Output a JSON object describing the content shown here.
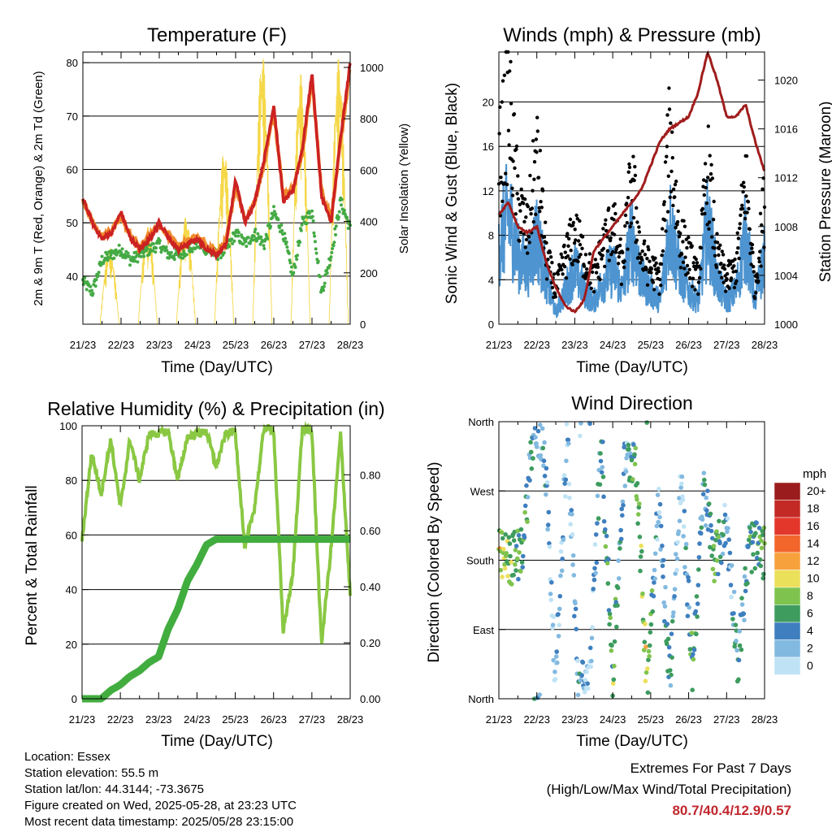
{
  "colors": {
    "temp_red": "#cc2222",
    "temp_orange": "#f08a2c",
    "dewpoint_green": "#44aa44",
    "solar_yellow": "#f5d84a",
    "wind_blue": "#4d94d0",
    "gust_black": "#000000",
    "pressure_maroon": "#a01c1c",
    "rh_lightgreen": "#8ac843",
    "precip_green": "#42ad3f",
    "extremes_red": "#c0272d"
  },
  "time_ticks": [
    "21/23",
    "22/23",
    "23/23",
    "24/23",
    "25/23",
    "26/23",
    "27/23",
    "28/23"
  ],
  "charts": [
    {
      "id": "temperature",
      "title": "Temperature (F)",
      "xlabel": "Time (Day/UTC)",
      "ylabel_left": "2m & 9m T (Red, Orange) & 2m Td (Green)",
      "ylabel_right": "Solar Insolation (Yellow)",
      "left_ticks": [
        "40",
        "50",
        "60",
        "70",
        "80"
      ],
      "right_ticks": [
        "0",
        "200",
        "400",
        "600",
        "800",
        "1000"
      ]
    },
    {
      "id": "winds",
      "title": "Winds (mph) & Pressure (mb)",
      "xlabel": "Time (Day/UTC)",
      "ylabel_left": "Sonic Wind & Gust (Blue, Black)",
      "ylabel_right": "Station Pressure (Maroon)",
      "left_ticks": [
        "0",
        "4",
        "8",
        "12",
        "16",
        "20"
      ],
      "right_ticks": [
        "1000",
        "1004",
        "1008",
        "1012",
        "1016",
        "1020"
      ]
    },
    {
      "id": "humidity",
      "title": "Relative Humidity (%) & Precipitation (in)",
      "xlabel": "Time (Day/UTC)",
      "ylabel_left": "Percent & Total Rainfall",
      "ylabel_right": "",
      "left_ticks": [
        "0",
        "20",
        "40",
        "60",
        "80",
        "100"
      ],
      "right_ticks": [
        "0.00",
        "0.20",
        "0.40",
        "0.60",
        "0.80"
      ]
    },
    {
      "id": "direction",
      "title": "Wind Direction",
      "xlabel": "Time (Day/UTC)",
      "ylabel_left": "Direction (Colored By Speed)",
      "ylabel_right": "",
      "left_ticks": [
        "North",
        "East",
        "South",
        "West",
        "North"
      ],
      "right_ticks": []
    }
  ],
  "legend": {
    "title": "mph",
    "labels": [
      "20+",
      "18",
      "16",
      "14",
      "12",
      "10",
      "8",
      "6",
      "4",
      "2",
      "0"
    ],
    "colors": [
      "#9b1c1c",
      "#c42a25",
      "#e3372c",
      "#f2662c",
      "#f7a13c",
      "#ebe05a",
      "#7fc34f",
      "#3d9c5e",
      "#3f7fbf",
      "#82b9e0",
      "#bfe3f5"
    ]
  },
  "chart_data": [
    {
      "type": "line",
      "title": "Temperature (F)",
      "xlabel": "Time (Day/UTC)",
      "ylabel": "2m & 9m T (Red, Orange) & 2m Td (Green)",
      "y2label": "Solar Insolation (Yellow)",
      "x_unit": "day index from 21/23",
      "ylim": [
        31,
        82
      ],
      "y2lim": [
        0,
        1060
      ],
      "x": [
        0,
        0.25,
        0.5,
        0.75,
        1,
        1.25,
        1.5,
        1.75,
        2,
        2.25,
        2.5,
        2.75,
        3,
        3.25,
        3.5,
        3.75,
        4,
        4.25,
        4.5,
        4.75,
        5,
        5.25,
        5.5,
        5.75,
        6,
        6.25,
        6.5,
        6.75,
        7
      ],
      "series": [
        {
          "name": "2m T",
          "axis": "left",
          "values": [
            54.5,
            50,
            47,
            48,
            52,
            47,
            45,
            47,
            50,
            47,
            45,
            46,
            47,
            45,
            44,
            46,
            58,
            50,
            54,
            62,
            72,
            54,
            56,
            64,
            78,
            55,
            50,
            66,
            80
          ]
        },
        {
          "name": "9m T",
          "axis": "left",
          "values": [
            54,
            50,
            47.5,
            48.5,
            51.5,
            47.5,
            45.5,
            47.5,
            49.5,
            47.5,
            45.5,
            46.5,
            47.5,
            45.5,
            44.5,
            46.5,
            57,
            50.5,
            54,
            61,
            71,
            55,
            56.5,
            63,
            77,
            56,
            51,
            65,
            79
          ]
        },
        {
          "name": "2m Td",
          "axis": "left",
          "values": [
            39,
            37,
            43,
            44,
            45,
            43,
            44,
            45,
            46,
            44,
            44,
            45,
            46,
            45,
            44,
            45,
            48,
            46,
            48,
            46,
            52,
            48,
            40,
            50,
            52,
            37,
            44,
            54,
            49
          ]
        },
        {
          "name": "Solar Insolation",
          "axis": "right",
          "values": [
            0,
            0,
            300,
            120,
            0,
            0,
            380,
            100,
            0,
            0,
            420,
            200,
            0,
            0,
            680,
            150,
            0,
            0,
            1060,
            400,
            0,
            0,
            980,
            300,
            0,
            0,
            1040,
            500,
            0
          ]
        }
      ]
    },
    {
      "type": "line",
      "title": "Winds (mph) & Pressure (mb)",
      "xlabel": "Time (Day/UTC)",
      "ylabel": "Sonic Wind & Gust (Blue, Black)",
      "y2label": "Station Pressure (Maroon)",
      "x_unit": "day index from 21/23",
      "ylim": [
        0,
        24.5
      ],
      "y2lim": [
        1000,
        1022.3
      ],
      "x": [
        0,
        0.25,
        0.5,
        0.75,
        1,
        1.25,
        1.5,
        1.75,
        2,
        2.25,
        2.5,
        2.75,
        3,
        3.25,
        3.5,
        3.75,
        4,
        4.25,
        4.5,
        4.75,
        5,
        5.25,
        5.5,
        5.75,
        6,
        6.25,
        6.5,
        6.75,
        7
      ],
      "series": [
        {
          "name": "Sonic Wind",
          "axis": "left",
          "values": [
            7,
            10,
            6,
            5,
            8,
            4,
            1,
            3,
            5,
            3,
            2,
            4,
            5,
            3,
            8,
            4,
            3,
            2,
            9,
            5,
            3,
            2,
            9,
            4,
            2,
            3,
            8,
            2,
            6
          ]
        },
        {
          "name": "Gust",
          "axis": "left",
          "values": [
            14,
            20,
            11,
            8,
            15,
            6,
            3,
            6,
            8,
            6,
            4,
            7,
            9,
            5,
            13,
            6,
            5,
            4,
            17,
            8,
            6,
            4,
            14,
            6,
            4,
            5,
            13,
            3,
            11
          ]
        },
        {
          "name": "Station Pressure",
          "axis": "right",
          "values": [
            1009,
            1010,
            1008,
            1007.5,
            1008,
            1005,
            1003,
            1001.5,
            1001,
            1002,
            1006,
            1007,
            1008,
            1009,
            1010,
            1011,
            1013,
            1015,
            1016,
            1016.5,
            1017,
            1019,
            1022.3,
            1020,
            1017,
            1017,
            1018,
            1015,
            1012.5
          ]
        }
      ]
    },
    {
      "type": "line",
      "title": "Relative Humidity (%) & Precipitation (in)",
      "xlabel": "Time (Day/UTC)",
      "ylabel": "Percent & Total Rainfall",
      "y2label": "",
      "x_unit": "day index from 21/23",
      "ylim": [
        0,
        100
      ],
      "y2lim": [
        0,
        0.975
      ],
      "x": [
        0,
        0.25,
        0.5,
        0.75,
        1,
        1.25,
        1.5,
        1.75,
        2,
        2.25,
        2.5,
        2.75,
        3,
        3.25,
        3.5,
        3.75,
        4,
        4.25,
        4.5,
        4.75,
        5,
        5.25,
        5.5,
        5.75,
        6,
        6.25,
        6.5,
        6.75,
        7
      ],
      "series": [
        {
          "name": "Relative Humidity",
          "axis": "left",
          "values": [
            58,
            90,
            75,
            95,
            70,
            95,
            80,
            97,
            97,
            98,
            80,
            96,
            97,
            98,
            85,
            97,
            98,
            55,
            70,
            99,
            99,
            25,
            45,
            99,
            98,
            20,
            55,
            97,
            38
          ]
        },
        {
          "name": "Total Precipitation",
          "axis": "right",
          "values": [
            0,
            0,
            0,
            0.03,
            0.05,
            0.08,
            0.1,
            0.13,
            0.15,
            0.25,
            0.32,
            0.42,
            0.48,
            0.55,
            0.57,
            0.57,
            0.57,
            0.57,
            0.57,
            0.57,
            0.57,
            0.57,
            0.57,
            0.57,
            0.57,
            0.57,
            0.57,
            0.57,
            0.57
          ]
        }
      ]
    },
    {
      "type": "scatter",
      "title": "Wind Direction",
      "xlabel": "Time (Day/UTC)",
      "ylabel": "Direction (Colored By Speed)",
      "x_unit": "day index from 21/23",
      "y_unit": "degrees (0 = North, 90 = East, 180 = South, 270 = West, 360 = North)",
      "ylim": [
        0,
        360
      ],
      "x": [
        0,
        0.3,
        0.6,
        0.9,
        1.2,
        1.5,
        1.8,
        2.1,
        2.4,
        2.7,
        3.0,
        3.3,
        3.6,
        3.9,
        4.2,
        4.5,
        4.8,
        5.1,
        5.4,
        5.7,
        6.0,
        6.3,
        6.6,
        6.9
      ],
      "series": [
        {
          "name": "Direction",
          "values": [
            185,
            180,
            190,
            340,
            330,
            20,
            350,
            10,
            30,
            340,
            30,
            300,
            320,
            20,
            260,
            30,
            280,
            40,
            270,
            180,
            230,
            50,
            200,
            190
          ]
        },
        {
          "name": "Speed",
          "values": [
            9,
            8,
            6,
            4,
            3,
            2,
            1,
            3,
            2,
            4,
            7,
            2,
            6,
            9,
            2,
            5,
            1,
            6,
            3,
            7,
            2,
            4,
            5,
            7
          ]
        }
      ]
    }
  ],
  "info": {
    "location": "Location: Essex",
    "elevation": "Station elevation: 55.5 m",
    "latlon": "Station lat/lon: 44.3144; -73.3675",
    "created": "Figure created on Wed, 2025-05-28, at 23:23 UTC",
    "recent": "Most recent data timestamp: 2025/05/28 23:15:00"
  },
  "extremes": {
    "title": "Extremes For Past 7 Days",
    "subtitle": "(High/Low/Max Wind/Total Precipitation)",
    "values": "80.7/40.4/12.9/0.57"
  }
}
